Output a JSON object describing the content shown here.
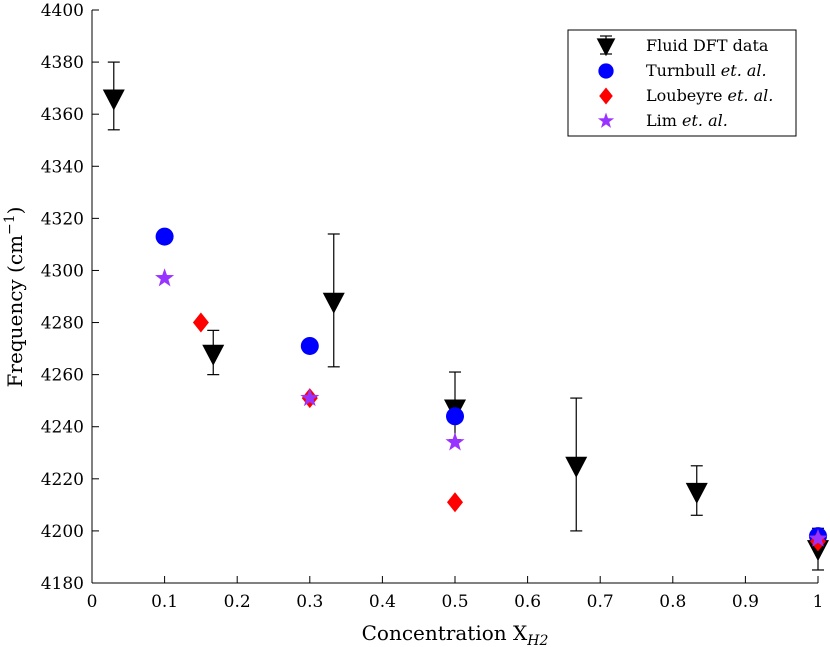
{
  "chart_data": {
    "type": "scatter",
    "title": "",
    "xlabel": {
      "main": "Concentration X",
      "sub": "H2"
    },
    "ylabel": {
      "main": "Frequency (cm",
      "sup": "−1",
      "tail": ")"
    },
    "xlim": [
      0,
      1
    ],
    "ylim": [
      4180,
      4400
    ],
    "xticks": [
      0,
      0.1,
      0.2,
      0.3,
      0.4,
      0.5,
      0.6,
      0.7,
      0.8,
      0.9,
      1
    ],
    "xtick_labels": [
      "0",
      "0.1",
      "0.2",
      "0.3",
      "0.4",
      "0.5",
      "0.6",
      "0.7",
      "0.8",
      "0.9",
      "1"
    ],
    "yticks": [
      4180,
      4200,
      4220,
      4240,
      4260,
      4280,
      4300,
      4320,
      4340,
      4360,
      4380,
      4400
    ],
    "ytick_labels": [
      "4180",
      "4200",
      "4220",
      "4240",
      "4260",
      "4280",
      "4300",
      "4320",
      "4340",
      "4360",
      "4380",
      "4400"
    ],
    "grid": false,
    "legend_position": "top-right",
    "series": [
      {
        "name": "Fluid DFT data",
        "legend_main": "Fluid DFT data",
        "legend_italic": "",
        "marker": "triangle-down",
        "color": "#000000",
        "x": [
          0.03,
          0.167,
          0.333,
          0.5,
          0.667,
          0.833,
          1.0
        ],
        "y": [
          4366,
          4268,
          4288,
          4247,
          4225,
          4215,
          4193
        ],
        "y_err_low": [
          4354,
          4260,
          4263,
          4235,
          4200,
          4206,
          4185
        ],
        "y_err_high": [
          4380,
          4277,
          4314,
          4261,
          4251,
          4225,
          4201
        ]
      },
      {
        "name": "Turnbull et. al.",
        "legend_main": "Turnbull ",
        "legend_italic": "et. al.",
        "marker": "circle",
        "color": "#0000ff",
        "x": [
          0.1,
          0.3,
          0.5,
          1.0
        ],
        "y": [
          4313,
          4271,
          4244,
          4198
        ]
      },
      {
        "name": "Loubeyre et. al.",
        "legend_main": "Loubeyre ",
        "legend_italic": "et. al.",
        "marker": "diamond",
        "color": "#ff0000",
        "x": [
          0.15,
          0.3,
          0.5,
          1.0
        ],
        "y": [
          4280,
          4251,
          4211,
          4196
        ]
      },
      {
        "name": "Lim et. al.",
        "legend_main": "Lim ",
        "legend_italic": "et. al.",
        "marker": "star",
        "color": "#9933ff",
        "x": [
          0.1,
          0.3,
          0.5,
          1.0
        ],
        "y": [
          4297,
          4251,
          4234,
          4197
        ]
      }
    ]
  }
}
